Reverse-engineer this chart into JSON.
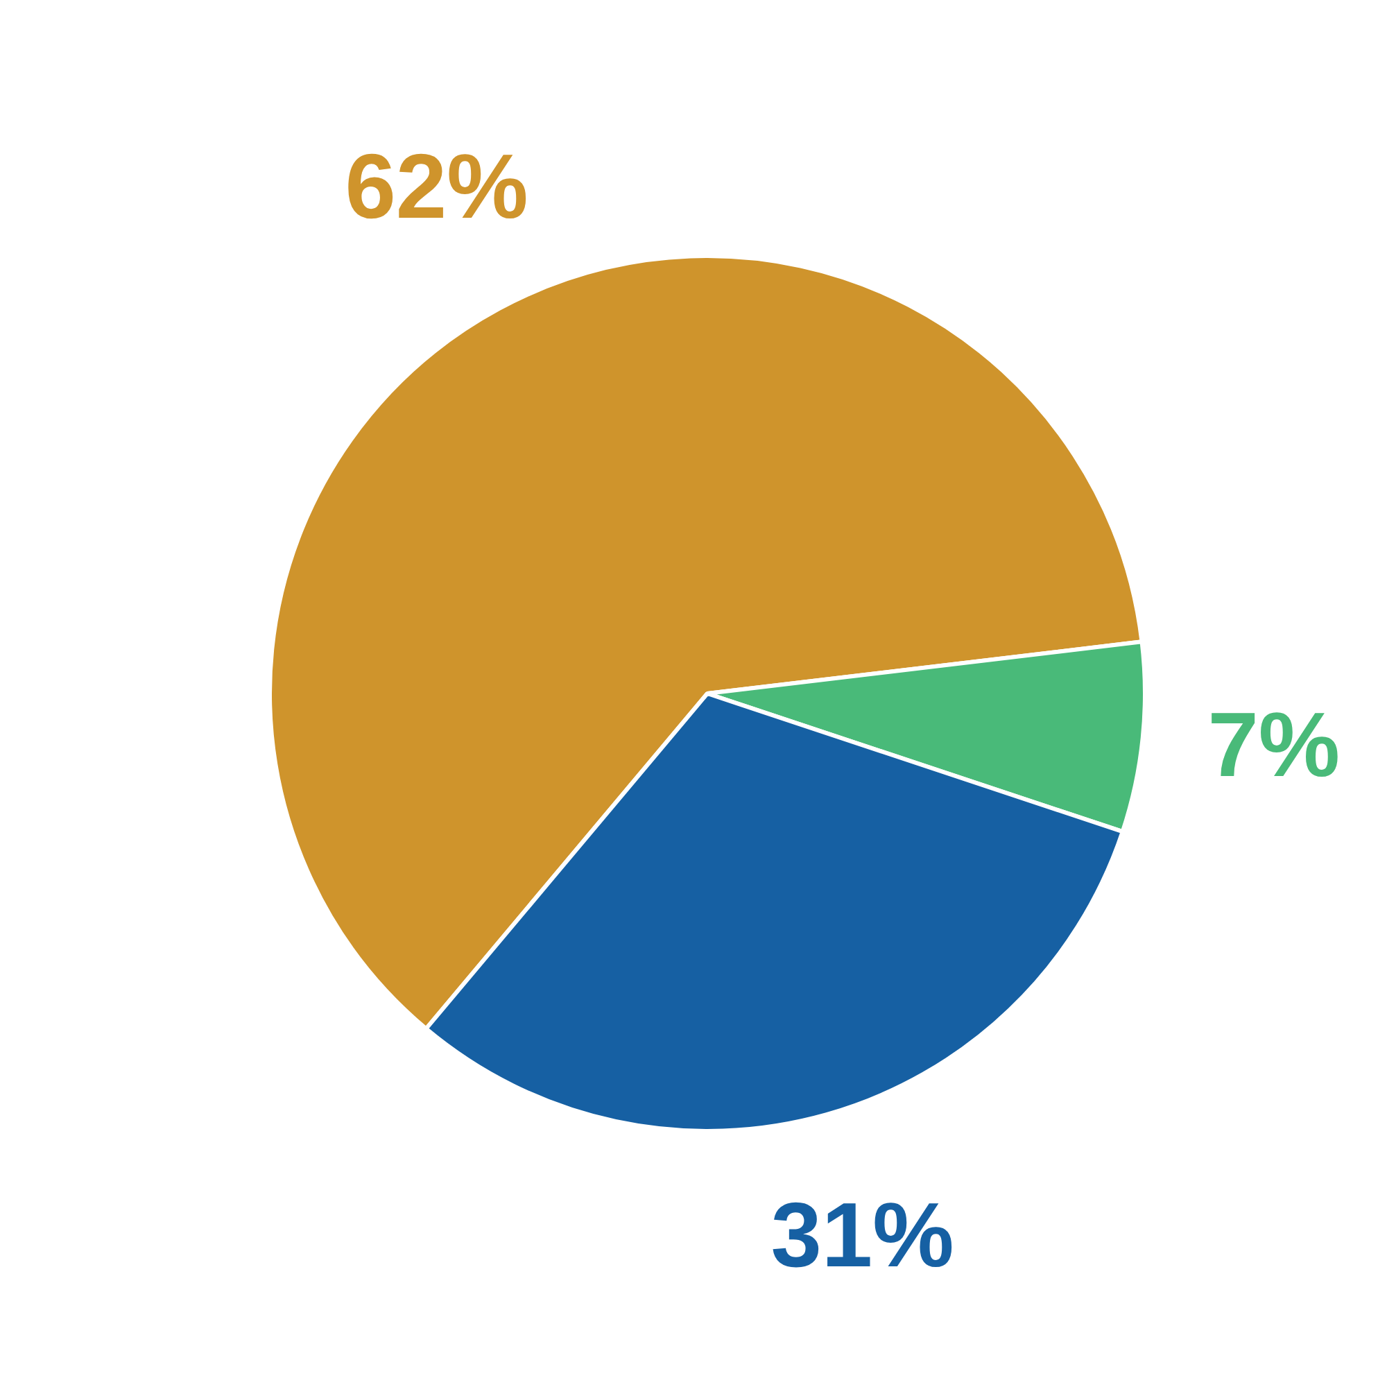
{
  "chart_data": {
    "type": "pie",
    "categories": [
      null,
      null,
      null
    ],
    "values": [
      62,
      7,
      31
    ],
    "colors": [
      "#cf942c",
      "#49ba79",
      "#1660a3"
    ],
    "value_labels": [
      "62%",
      "7%",
      "31%"
    ],
    "legend": false
  }
}
